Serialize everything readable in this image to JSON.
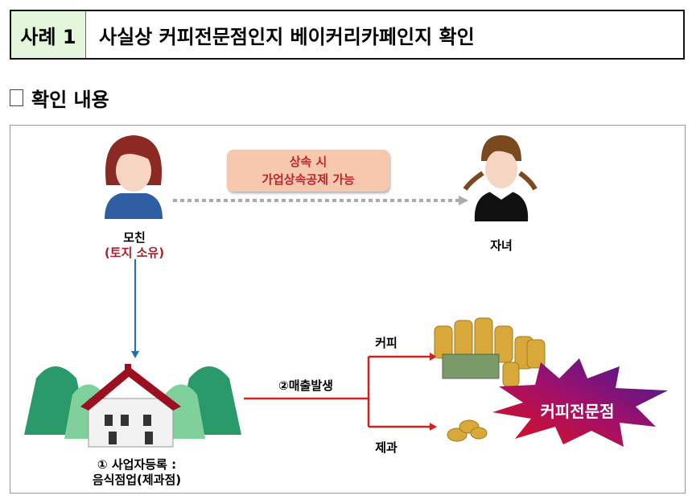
{
  "header": {
    "case_label": "사례 1",
    "title": "사실상 커피전문점인지 베이커리카페인지 확인"
  },
  "section": {
    "title": "확인 내용"
  },
  "diagram": {
    "mother": {
      "name": "모친",
      "note": "(토지 소유)"
    },
    "child": {
      "name": "자녀"
    },
    "inheritance": {
      "line1": "상속 시",
      "line2": "가업상속공제 가능"
    },
    "business": {
      "line1": "① 사업자등록 :",
      "line2": "음식점업(제과점)"
    },
    "sales": "②매출발생",
    "branch_coffee": "커피",
    "branch_bakery": "제과",
    "result": "커피전문점",
    "colors": {
      "red": "#c0262b",
      "blue": "#1f6fb2",
      "green_label": "#e4f6dc"
    }
  }
}
